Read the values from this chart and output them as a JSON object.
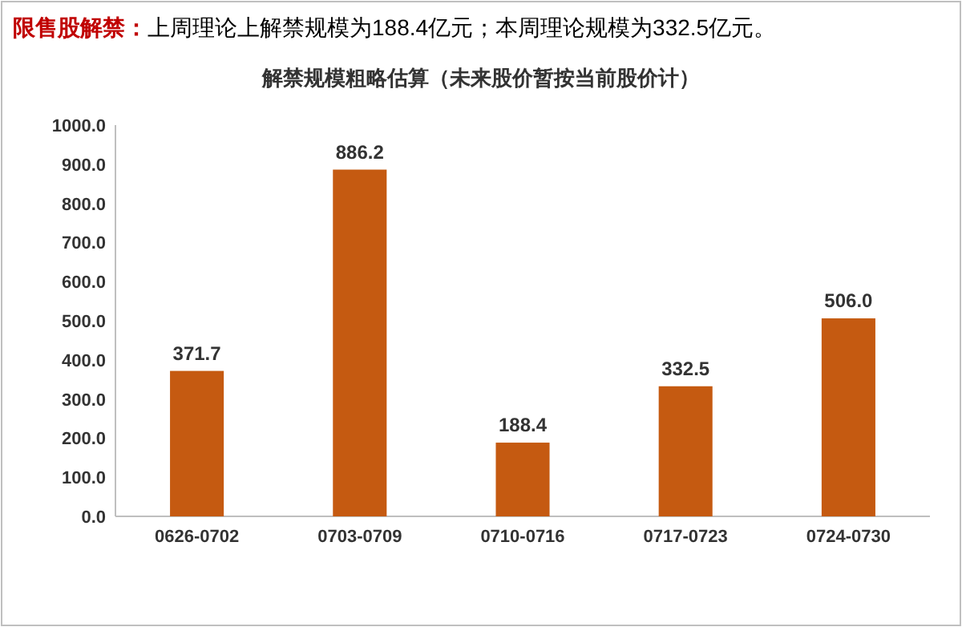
{
  "chart_data": {
    "type": "bar",
    "title": "限售股解禁：上周理论上解禁规模为188.4亿元；本周理论规模为332.5亿元。",
    "subtitle": "解禁规模粗略估算（未来股价暂按当前股价计）",
    "categories": [
      "0626-0702",
      "0703-0709",
      "0710-0716",
      "0717-0723",
      "0724-0730"
    ],
    "values": [
      371.7,
      886.2,
      188.4,
      332.5,
      506.0
    ],
    "value_labels": [
      "371.7",
      "886.2",
      "188.4",
      "332.5",
      "506.0"
    ],
    "color": "#c55a11",
    "ylim": [
      0,
      1000
    ],
    "yticks": [
      {
        "value": 0,
        "label": "0.0"
      },
      {
        "value": 100,
        "label": "100.0"
      },
      {
        "value": 200,
        "label": "200.0"
      },
      {
        "value": 300,
        "label": "300.0"
      },
      {
        "value": 400,
        "label": "400.0"
      },
      {
        "value": 500,
        "label": "500.0"
      },
      {
        "value": 600,
        "label": "600.0"
      },
      {
        "value": 700,
        "label": "700.0"
      },
      {
        "value": 800,
        "label": "800.0"
      },
      {
        "value": 900,
        "label": "900.0"
      },
      {
        "value": 1000,
        "label": "1000.0"
      }
    ],
    "grid": false
  }
}
